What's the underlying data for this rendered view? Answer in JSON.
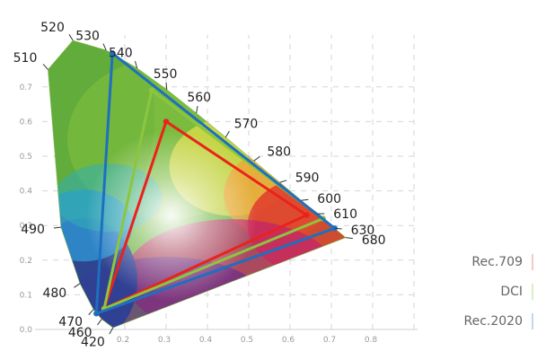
{
  "chart_data": {
    "type": "scatter",
    "title": "",
    "xlabel": "",
    "ylabel": "",
    "xlim": [
      0,
      0.8
    ],
    "ylim": [
      0,
      0.85
    ],
    "grid": true,
    "legend_position": "bottom-right",
    "x_ticks": [
      {
        "value": 0.2,
        "label": "0.2"
      },
      {
        "value": 0.3,
        "label": "0.3"
      },
      {
        "value": 0.4,
        "label": "0.4"
      },
      {
        "value": 0.5,
        "label": "0.5"
      },
      {
        "value": 0.6,
        "label": "0.6"
      },
      {
        "value": 0.7,
        "label": "0.7"
      },
      {
        "value": 0.8,
        "label": "0.8"
      }
    ],
    "y_ticks": [
      {
        "value": 0.0,
        "label": "0.0"
      },
      {
        "value": 0.1,
        "label": "0.1"
      },
      {
        "value": 0.2,
        "label": "0.2"
      },
      {
        "value": 0.3,
        "label": "0.3"
      },
      {
        "value": 0.4,
        "label": "0.4"
      },
      {
        "value": 0.5,
        "label": "0.5"
      },
      {
        "value": 0.6,
        "label": "0.6"
      },
      {
        "value": 0.7,
        "label": "0.7"
      }
    ],
    "spectral_locus": [
      {
        "wavelength": "420",
        "x": 0.1714,
        "y": 0.0051
      },
      {
        "wavelength": "460",
        "x": 0.144,
        "y": 0.0297
      },
      {
        "wavelength": "470",
        "x": 0.1241,
        "y": 0.0578
      },
      {
        "wavelength": "480",
        "x": 0.0913,
        "y": 0.1327
      },
      {
        "wavelength": "490",
        "x": 0.0454,
        "y": 0.295
      },
      {
        "wavelength": "510",
        "x": 0.0139,
        "y": 0.7502
      },
      {
        "wavelength": "520",
        "x": 0.0743,
        "y": 0.8338
      },
      {
        "wavelength": "530",
        "x": 0.1547,
        "y": 0.8059
      },
      {
        "wavelength": "540",
        "x": 0.2296,
        "y": 0.7543
      },
      {
        "wavelength": "550",
        "x": 0.3016,
        "y": 0.6923
      },
      {
        "wavelength": "560",
        "x": 0.3731,
        "y": 0.6245
      },
      {
        "wavelength": "570",
        "x": 0.4441,
        "y": 0.5547
      },
      {
        "wavelength": "580",
        "x": 0.5125,
        "y": 0.4866
      },
      {
        "wavelength": "590",
        "x": 0.5752,
        "y": 0.4242
      },
      {
        "wavelength": "600",
        "x": 0.627,
        "y": 0.3725
      },
      {
        "wavelength": "610",
        "x": 0.6658,
        "y": 0.334
      },
      {
        "wavelength": "630",
        "x": 0.7079,
        "y": 0.292
      },
      {
        "wavelength": "680",
        "x": 0.7347,
        "y": 0.2653
      }
    ],
    "series": [
      {
        "name": "Rec.709",
        "color": "#e8231c",
        "points": [
          [
            0.64,
            0.33
          ],
          [
            0.3,
            0.6
          ],
          [
            0.15,
            0.06
          ]
        ]
      },
      {
        "name": "DCI",
        "color": "#8cc63f",
        "points": [
          [
            0.68,
            0.32
          ],
          [
            0.265,
            0.69
          ],
          [
            0.15,
            0.06
          ]
        ]
      },
      {
        "name": "Rec.2020",
        "color": "#1e6fc0",
        "points": [
          [
            0.708,
            0.292
          ],
          [
            0.17,
            0.797
          ],
          [
            0.131,
            0.046
          ]
        ]
      }
    ]
  }
}
